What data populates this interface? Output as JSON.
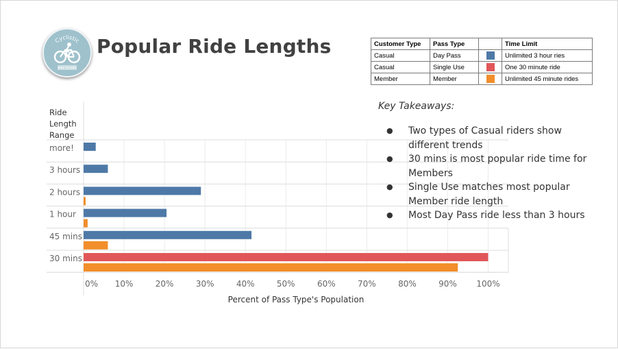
{
  "title": "Popular Ride Lengths",
  "logo": {
    "text": "Cyclistic",
    "subtext": "BIKE SHARE",
    "icon": "bicycle-rider-icon",
    "color": "#9ec1cc"
  },
  "legend_table": {
    "headers": [
      "Customer Type",
      "Pass Type",
      "",
      "Time Limit"
    ],
    "rows": [
      {
        "customer_type": "Casual",
        "pass_type": "Day Pass",
        "color": "#4e79a7",
        "time_limit": "Unlimited 3 hour ries"
      },
      {
        "customer_type": "Casual",
        "pass_type": "Single Use",
        "color": "#e15759",
        "time_limit": "One 30 minute ride"
      },
      {
        "customer_type": "Member",
        "pass_type": "Member",
        "color": "#f28e2b",
        "time_limit": "Unlimited 45 minute rides"
      }
    ]
  },
  "takeaways": {
    "title": "Key Takeaways:",
    "items": [
      "Two types of Casual riders show different trends",
      "30 mins is most popular ride time for Members",
      "Single Use matches most popular Member ride length",
      "Most Day Pass ride less than 3 hours"
    ]
  },
  "chart_data": {
    "type": "bar",
    "orientation": "horizontal",
    "ylabel": "Ride Length Range",
    "xlabel": "Percent of Pass Type's Population",
    "categories": [
      "more!",
      "3 hours",
      "2 hours",
      "1 hour",
      "45 mins",
      "30 mins"
    ],
    "x_ticks": [
      "0%",
      "10%",
      "20%",
      "30%",
      "40%",
      "50%",
      "60%",
      "70%",
      "80%",
      "90%",
      "100%"
    ],
    "xlim": [
      0,
      100
    ],
    "grid": true,
    "series": [
      {
        "name": "Day Pass",
        "color": "#4e79a7",
        "values": [
          3,
          6,
          29,
          20.5,
          41.5,
          0
        ]
      },
      {
        "name": "Single Use",
        "color": "#e15759",
        "values": [
          0,
          0,
          0,
          0,
          0,
          100
        ]
      },
      {
        "name": "Member",
        "color": "#f28e2b",
        "values": [
          0,
          0,
          0.5,
          1,
          6,
          92.5
        ]
      }
    ]
  }
}
